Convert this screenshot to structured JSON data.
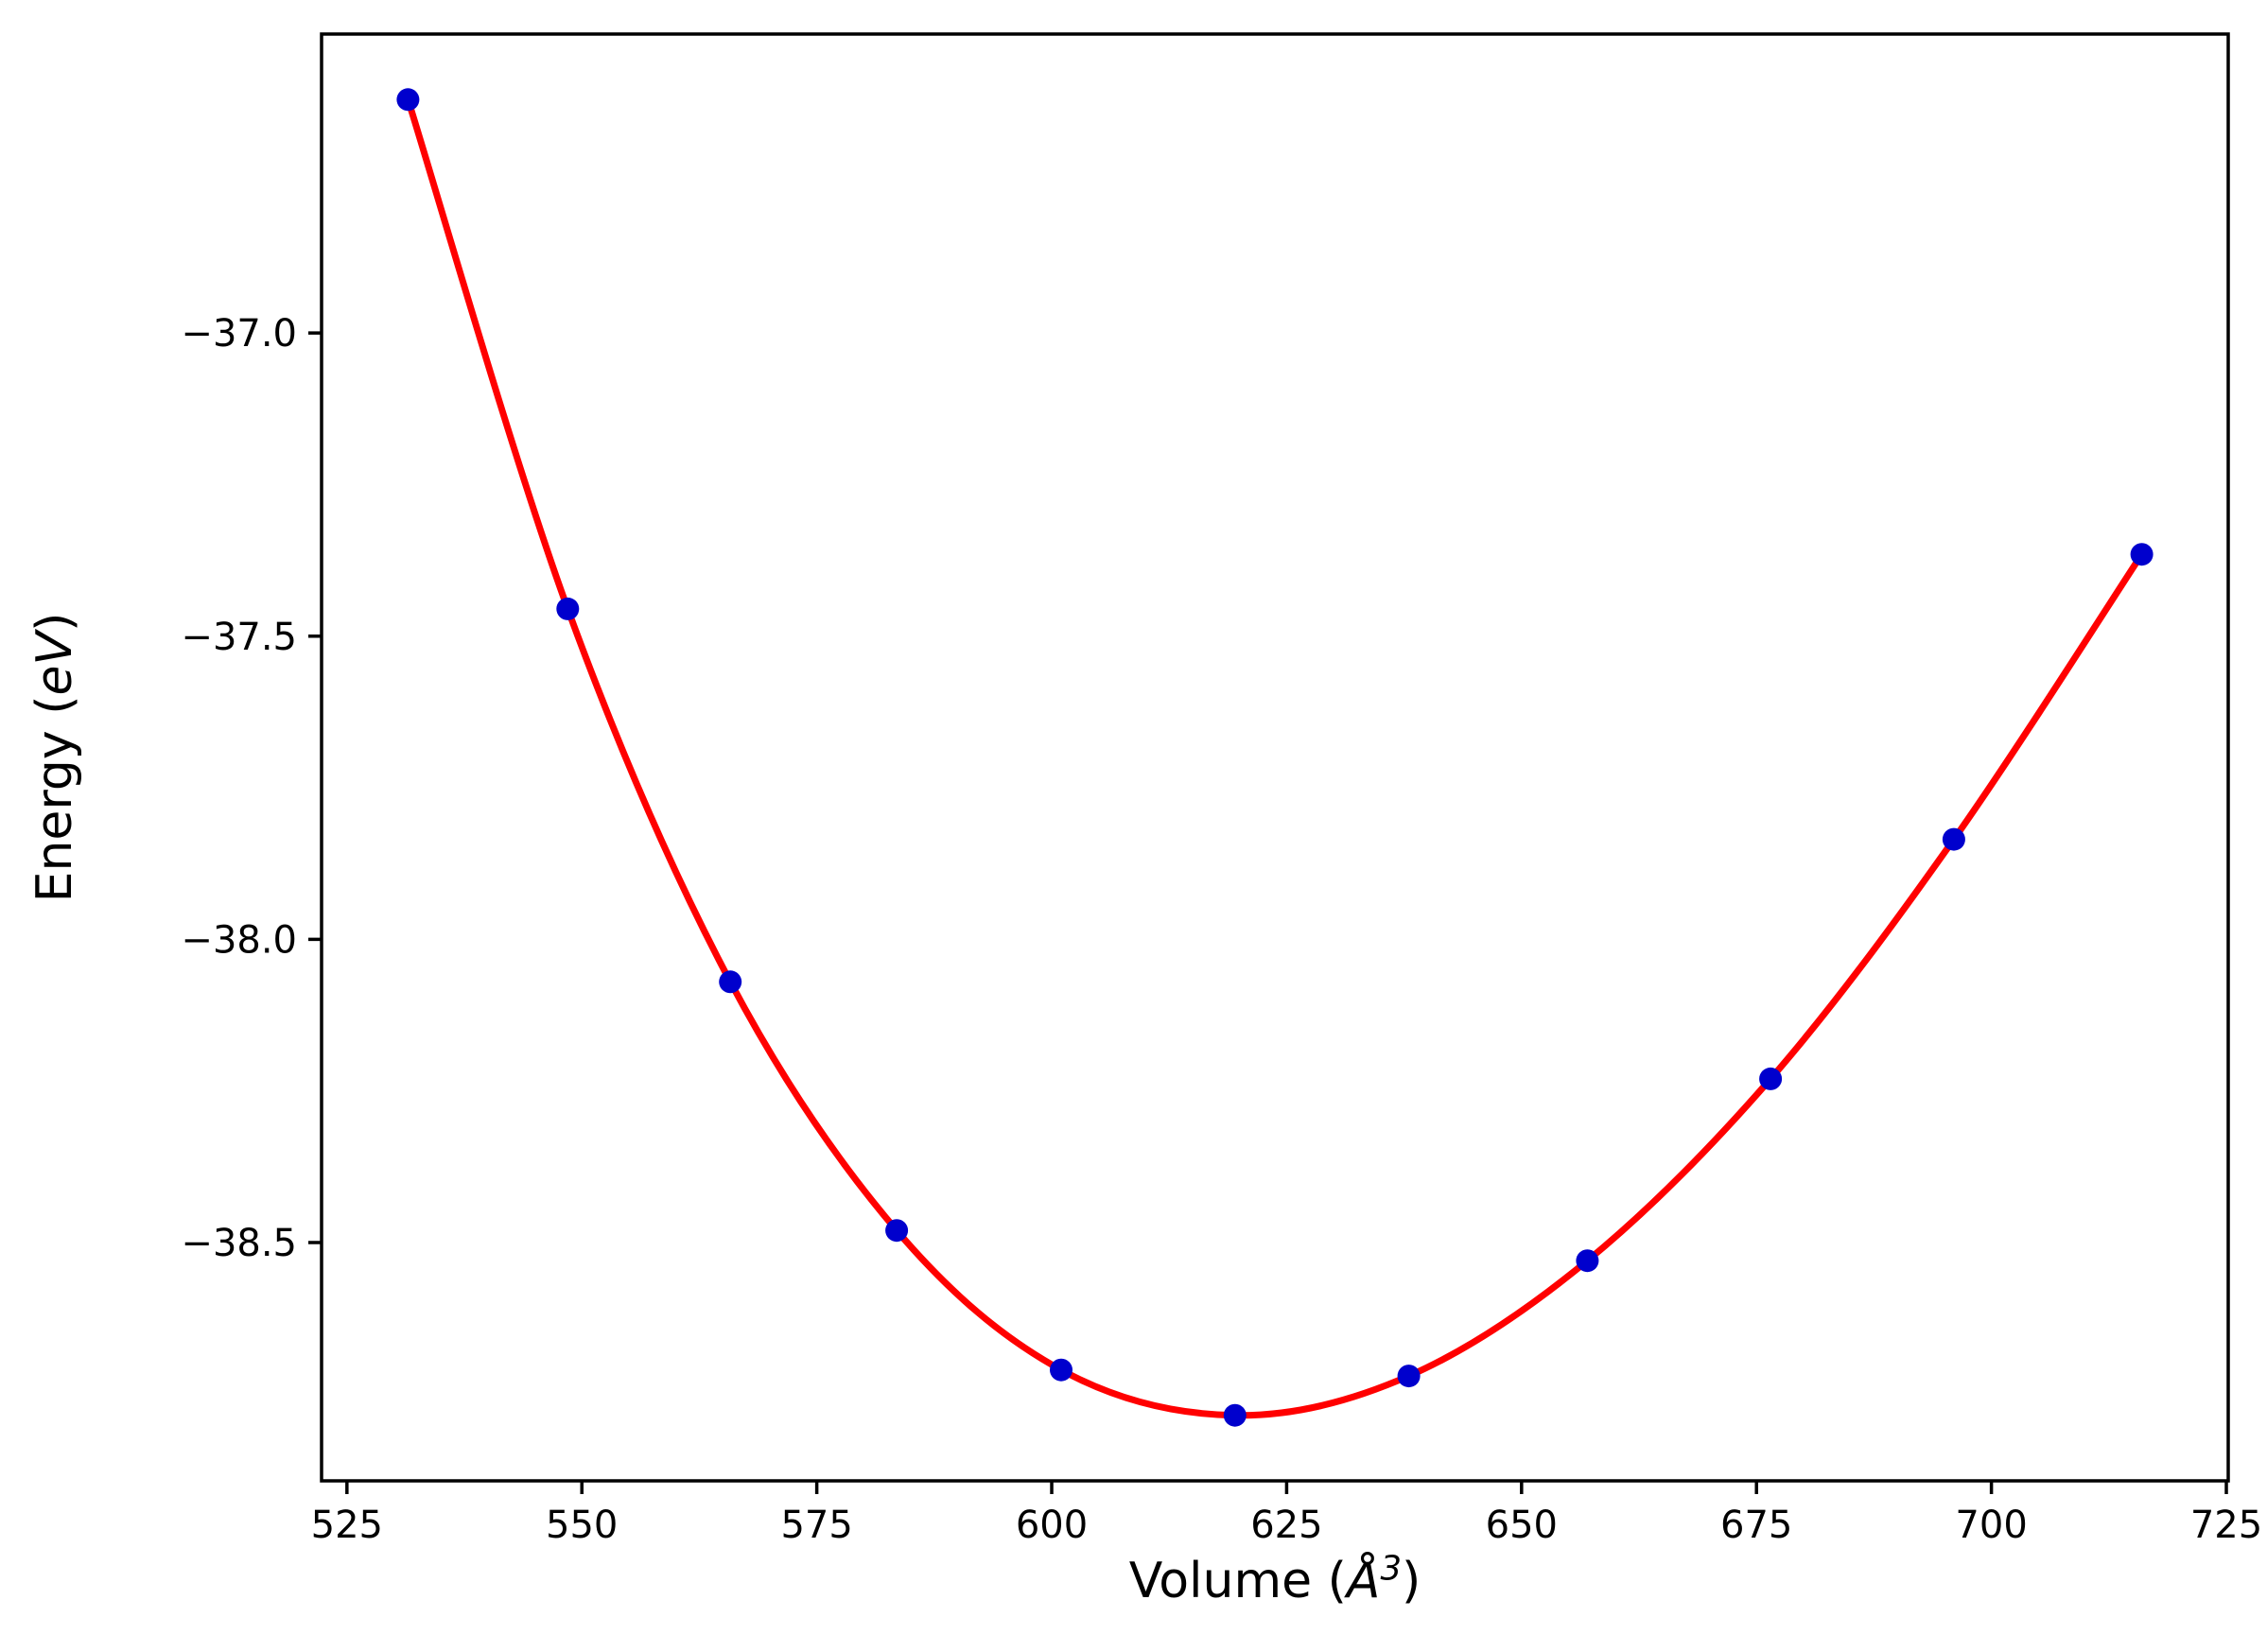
{
  "figure": {
    "background": "#ffffff",
    "frame_color": "#000000",
    "tick_color": "#000000"
  },
  "chart_data": {
    "type": "scatter",
    "title": "",
    "xlabel": {
      "prefix": "Volume (",
      "math": "Å",
      "sup": "3",
      "suffix": ")"
    },
    "ylabel": {
      "prefix": "Energy (",
      "math": "eV",
      "suffix": ")"
    },
    "xlim": [
      522.3,
      725.2
    ],
    "ylim": [
      -38.893,
      -36.507
    ],
    "xticks": [
      525,
      550,
      575,
      600,
      625,
      650,
      675,
      700,
      725
    ],
    "xtick_labels": [
      "525",
      "550",
      "575",
      "600",
      "625",
      "650",
      "675",
      "700",
      "725"
    ],
    "yticks": [
      -37.0,
      -37.5,
      -38.0,
      -38.5
    ],
    "ytick_labels": [
      "−37.0",
      "−37.5",
      "−38.0",
      "−38.5"
    ],
    "grid": false,
    "legend": "none",
    "series": [
      {
        "name": "eos-fit-curve",
        "type": "line",
        "color": "#ff0000",
        "linewidth": 7,
        "fit_through_points": true
      },
      {
        "name": "calculated-points",
        "type": "scatter",
        "color": "#0000cd",
        "marker": "circle",
        "marker_radius": 12,
        "x": [
          531.5,
          548.5,
          565.8,
          583.5,
          601.0,
          619.5,
          638.0,
          657.0,
          676.5,
          696.0,
          716.0
        ],
        "y": [
          -36.615,
          -37.455,
          -38.07,
          -38.48,
          -38.71,
          -38.785,
          -38.72,
          -38.53,
          -38.23,
          -37.835,
          -37.365
        ]
      }
    ]
  }
}
